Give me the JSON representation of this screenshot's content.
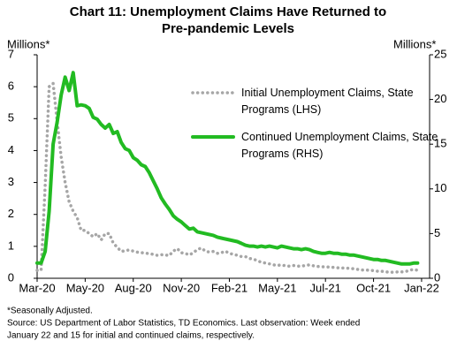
{
  "chart_data": {
    "type": "line",
    "title": [
      "Chart 11: Unemployment Claims Have Returned to",
      "Pre-pandemic Levels"
    ],
    "y_label": "Millions*",
    "y2_label": "Millions*",
    "x": [
      0,
      1,
      2,
      3,
      4,
      5,
      6,
      7,
      8,
      9,
      10,
      11,
      12,
      13,
      14,
      15,
      16,
      17,
      18,
      19,
      20,
      21,
      22,
      23,
      24,
      25,
      26,
      27,
      28,
      29,
      30,
      31,
      32,
      33,
      34,
      35,
      36,
      37,
      38,
      39,
      40,
      41,
      42,
      43,
      44,
      45,
      46,
      47,
      48,
      49,
      50,
      51,
      52,
      53,
      54,
      55,
      56,
      57,
      58,
      59,
      60,
      61,
      62,
      63,
      64,
      65,
      66,
      67,
      68,
      69,
      70,
      71,
      72,
      73,
      74,
      75,
      76,
      77,
      78,
      79,
      80,
      81,
      82,
      83,
      84,
      85,
      86,
      87,
      88,
      89,
      90,
      91,
      92,
      93,
      94,
      95
    ],
    "xlim": [
      0,
      98
    ],
    "xticks": [
      {
        "value": 0,
        "label": "Mar-20"
      },
      {
        "value": 12,
        "label": "May-20"
      },
      {
        "value": 24,
        "label": "Aug-20"
      },
      {
        "value": 36,
        "label": "Nov-20"
      },
      {
        "value": 48,
        "label": "Feb-21"
      },
      {
        "value": 60,
        "label": "May-21"
      },
      {
        "value": 72,
        "label": "Jul-21"
      },
      {
        "value": 84,
        "label": "Oct-21"
      },
      {
        "value": 96,
        "label": "Jan-22"
      }
    ],
    "ylim": [
      0,
      7
    ],
    "yticks": [
      0,
      1,
      2,
      3,
      4,
      5,
      6,
      7
    ],
    "y2lim": [
      0,
      25
    ],
    "y2ticks": [
      0,
      5,
      10,
      15,
      20,
      25
    ],
    "series": [
      {
        "name": "Initial Unemployment Claims, State Programs (LHS)",
        "color": "#a6a6a6",
        "dash": "dotted",
        "axis": "y",
        "values": [
          0.25,
          0.25,
          2.9,
          6.0,
          6.1,
          4.9,
          3.8,
          3.0,
          2.4,
          2.1,
          1.9,
          1.5,
          1.5,
          1.4,
          1.3,
          1.4,
          1.2,
          1.4,
          1.4,
          1.1,
          0.97,
          0.84,
          0.86,
          0.89,
          0.85,
          0.82,
          0.8,
          0.79,
          0.77,
          0.75,
          0.72,
          0.74,
          0.73,
          0.71,
          0.85,
          0.93,
          0.8,
          0.78,
          0.73,
          0.8,
          0.9,
          0.95,
          0.85,
          0.82,
          0.84,
          0.78,
          0.8,
          0.85,
          0.78,
          0.75,
          0.72,
          0.68,
          0.68,
          0.62,
          0.6,
          0.55,
          0.5,
          0.48,
          0.45,
          0.42,
          0.4,
          0.42,
          0.39,
          0.38,
          0.4,
          0.38,
          0.38,
          0.4,
          0.42,
          0.39,
          0.37,
          0.36,
          0.36,
          0.35,
          0.34,
          0.33,
          0.32,
          0.32,
          0.31,
          0.3,
          0.28,
          0.26,
          0.26,
          0.25,
          0.24,
          0.22,
          0.22,
          0.2,
          0.19,
          0.19,
          0.2,
          0.2,
          0.21,
          0.25,
          0.28,
          0.25
        ]
      },
      {
        "name": "Continued Unemployment Claims, State Programs (RHS)",
        "color": "#22bb22",
        "dash": "solid",
        "axis": "y2",
        "values": [
          1.7,
          1.7,
          3.0,
          7.5,
          15,
          17.5,
          20.5,
          22.5,
          21,
          23,
          19.3,
          19.4,
          19.3,
          19,
          18,
          17.8,
          17.2,
          16.8,
          17.2,
          16.2,
          16.4,
          15.2,
          14.5,
          14.3,
          13.5,
          13.2,
          12.7,
          12.5,
          11.8,
          10.9,
          10.0,
          9.0,
          8.3,
          7.7,
          7.0,
          6.6,
          6.3,
          5.9,
          5.5,
          5.6,
          5.2,
          5.1,
          5.0,
          4.9,
          4.8,
          4.6,
          4.5,
          4.4,
          4.3,
          4.2,
          4.1,
          3.9,
          3.7,
          3.6,
          3.6,
          3.5,
          3.6,
          3.5,
          3.6,
          3.5,
          3.4,
          3.6,
          3.5,
          3.4,
          3.3,
          3.3,
          3.2,
          3.3,
          3.2,
          3.0,
          2.9,
          2.8,
          2.8,
          2.9,
          2.8,
          2.8,
          2.7,
          2.7,
          2.6,
          2.6,
          2.5,
          2.4,
          2.3,
          2.2,
          2.1,
          2.1,
          2.0,
          2.0,
          1.9,
          1.8,
          1.7,
          1.6,
          1.6,
          1.6,
          1.7,
          1.7
        ]
      }
    ],
    "notes": [
      "*Seasonally Adjusted.",
      "Source: US Department  of Labor Statistics, TD Economics.  Last observation: Week ended",
      "January 22 and 15 for initial and continued claims, respectively."
    ]
  }
}
